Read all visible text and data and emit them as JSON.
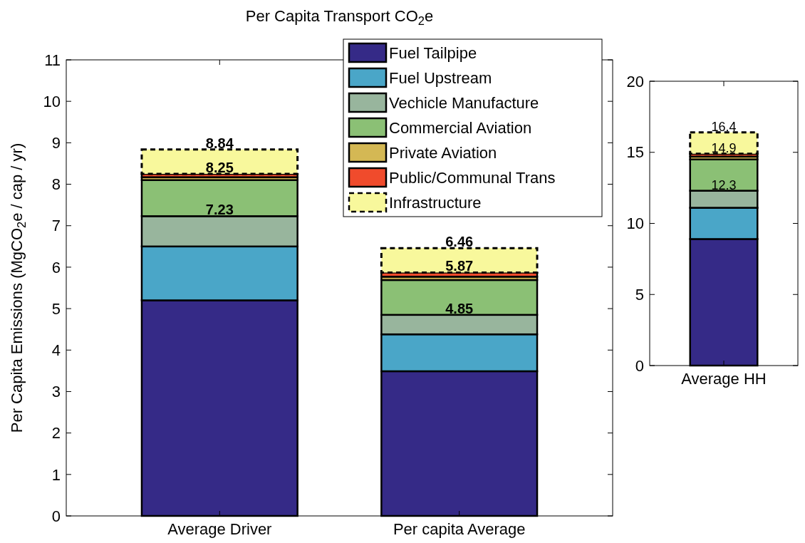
{
  "chart_data": [
    {
      "type": "bar",
      "title": "Per Capita Transport CO$_{2}$e",
      "ylabel": "Per Capita Emissions (MgCO$_{2}$e / cap / yr)",
      "categories": [
        "Average Driver",
        "Per capita Average"
      ],
      "stacked": true,
      "ylim": [
        0,
        11
      ],
      "yticks": [
        0,
        1,
        2,
        3,
        4,
        5,
        6,
        7,
        8,
        9,
        10,
        11
      ],
      "legend": "top right",
      "series": [
        {
          "name": "Fuel Tailpipe",
          "color": "#352a87",
          "values": [
            5.2,
            3.49
          ]
        },
        {
          "name": "Fuel Upstream",
          "color": "#4aa6c8",
          "values": [
            1.3,
            0.89
          ]
        },
        {
          "name": "Vechicle Manufacture",
          "color": "#98b59d",
          "values": [
            0.73,
            0.47
          ]
        },
        {
          "name": "Commercial Aviation",
          "color": "#8bc075",
          "values": [
            0.87,
            0.84
          ]
        },
        {
          "name": "Private Aviation",
          "color": "#d4b854",
          "values": [
            0.07,
            0.08
          ]
        },
        {
          "name": "Public/Communal Trans",
          "color": "#f04b2c",
          "values": [
            0.08,
            0.1
          ]
        },
        {
          "name": "Infrastructure",
          "color": "#f8f89c",
          "line_style": "dashed",
          "values": [
            0.59,
            0.59
          ]
        }
      ],
      "annotations": [
        {
          "text": "8.84",
          "x": "Average Driver",
          "y": 8.84
        },
        {
          "text": "8.25",
          "x": "Average Driver",
          "y": 8.25
        },
        {
          "text": "7.23",
          "x": "Average Driver",
          "y": 7.23
        },
        {
          "text": "6.46",
          "x": "Per capita Average",
          "y": 6.46
        },
        {
          "text": "5.87",
          "x": "Per capita Average",
          "y": 5.87
        },
        {
          "text": "4.85",
          "x": "Per capita Average",
          "y": 4.85
        }
      ]
    },
    {
      "type": "bar",
      "categories": [
        "Average HH"
      ],
      "stacked": true,
      "ylim": [
        0,
        20
      ],
      "yticks": [
        0,
        5,
        10,
        15,
        20
      ],
      "series": [
        {
          "color": "#352a87",
          "values": [
            8.9
          ]
        },
        {
          "color": "#4aa6c8",
          "values": [
            2.2
          ]
        },
        {
          "color": "#98b59d",
          "values": [
            1.2
          ]
        },
        {
          "color": "#8bc075",
          "values": [
            2.2
          ]
        },
        {
          "color": "#d4b854",
          "values": [
            0.2
          ]
        },
        {
          "color": "#f04b2c",
          "values": [
            0.2
          ]
        },
        {
          "color": "#f8f89c",
          "line_style": "dashed",
          "values": [
            1.5
          ]
        }
      ],
      "annotations": [
        {
          "text": "16.4",
          "x": "Average HH",
          "y": 16.4
        },
        {
          "text": "14.9",
          "x": "Average HH",
          "y": 14.9
        },
        {
          "text": "12.3",
          "x": "Average HH",
          "y": 12.3
        }
      ]
    }
  ]
}
